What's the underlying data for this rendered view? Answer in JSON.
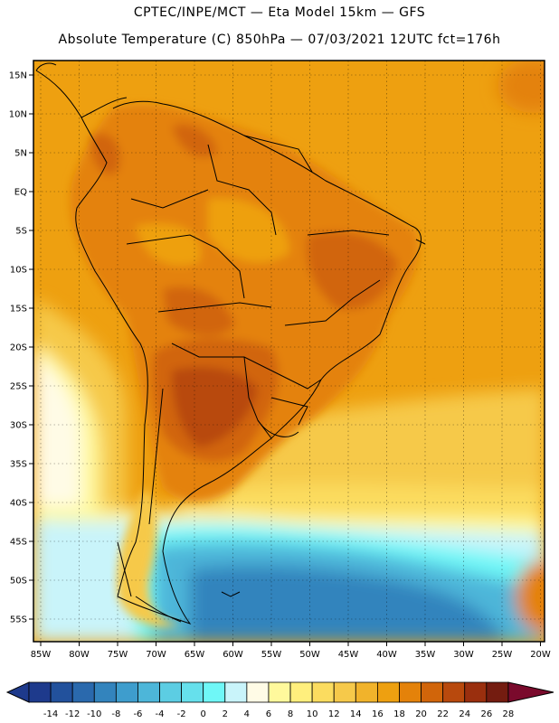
{
  "header": {
    "line1": "CPTEC/INPE/MCT —  Eta Model 15km — GFS",
    "line2": "Absolute Temperature (C) 850hPa — 07/03/2021 12UTC fct=176h"
  },
  "map": {
    "lat_labels": [
      "15N",
      "10N",
      "5N",
      "EQ",
      "5S",
      "10S",
      "15S",
      "20S",
      "25S",
      "30S",
      "35S",
      "40S",
      "45S",
      "50S",
      "55S"
    ],
    "lon_labels": [
      "85W",
      "80W",
      "75W",
      "70W",
      "65W",
      "60W",
      "55W",
      "50W",
      "45W",
      "40W",
      "35W",
      "30W",
      "25W",
      "20W"
    ],
    "lat_range": [
      15.7,
      -57.0
    ],
    "lon_range": [
      -86.0,
      -19.5
    ]
  },
  "colorbar": {
    "labels": [
      "-14",
      "-12",
      "-10",
      "-8",
      "-6",
      "-4",
      "-2",
      "0",
      "2",
      "4",
      "6",
      "8",
      "10",
      "12",
      "14",
      "16",
      "18",
      "20",
      "22",
      "24",
      "26",
      "28"
    ],
    "colors": [
      "#1e3a8c",
      "#22519c",
      "#2a69ad",
      "#3384bd",
      "#3e9dcd",
      "#4db6d9",
      "#5ccde3",
      "#66e0ec",
      "#6ff7f7",
      "#c9f4fa",
      "#fffbe6",
      "#fff99c",
      "#ffef7d",
      "#fbdc5f",
      "#f6c94a",
      "#f1b32b",
      "#eea010",
      "#e4820a",
      "#d1650a",
      "#b8490d",
      "#9a2f0e",
      "#741c10",
      "#7a0a2c"
    ]
  }
}
